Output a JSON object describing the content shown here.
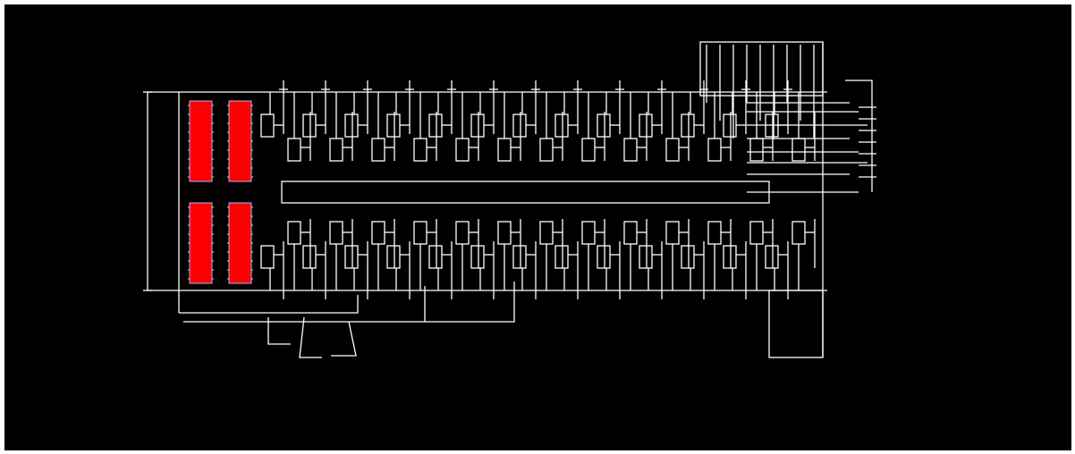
{
  "canvas": {
    "background": "#000000",
    "wire_color": "#ffffff",
    "component_color": "#ff0000"
  }
}
